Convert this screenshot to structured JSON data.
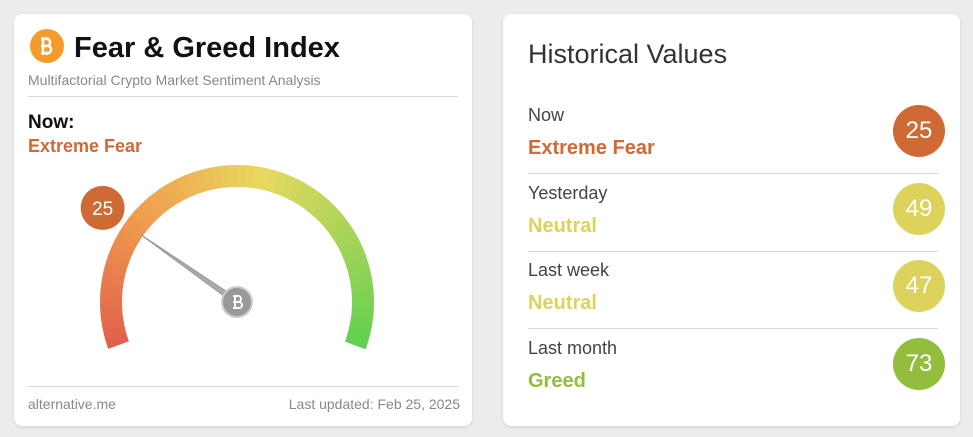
{
  "fear_greed": {
    "title": "Fear & Greed Index",
    "subtitle": "Multifactorial Crypto Market Sentiment Analysis",
    "now_label": "Now:",
    "classification": "Extreme Fear",
    "color": "#d06a35",
    "value": 25,
    "range": [
      0,
      100
    ],
    "source": "alternative.me",
    "last_updated": "Last updated: Feb 25, 2025"
  },
  "history": {
    "title": "Historical Values",
    "rows": [
      {
        "label": "Now",
        "classification": "Extreme Fear",
        "value": 25,
        "color": "#d06a35"
      },
      {
        "label": "Yesterday",
        "classification": "Neutral",
        "value": 49,
        "color": "#ddd35c"
      },
      {
        "label": "Last week",
        "classification": "Neutral",
        "value": 47,
        "color": "#ddd35c"
      },
      {
        "label": "Last month",
        "classification": "Greed",
        "value": 73,
        "color": "#93bd3d"
      }
    ]
  }
}
